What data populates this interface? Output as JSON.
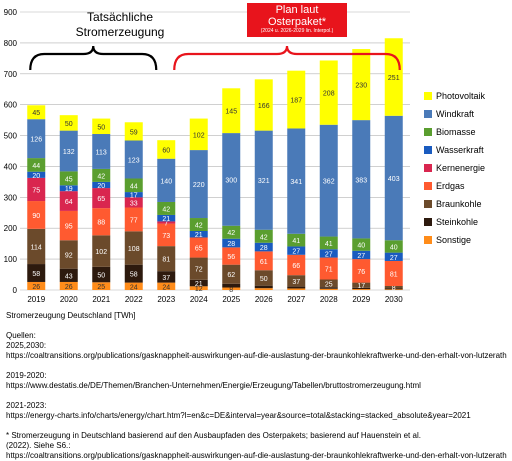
{
  "chart_data": {
    "type": "bar",
    "stacked": true,
    "categories": [
      "2019",
      "2020",
      "2021",
      "2022",
      "2023",
      "2024",
      "2025",
      "2026",
      "2027",
      "2028",
      "2029",
      "2030"
    ],
    "ylim": [
      0,
      900
    ],
    "yticks": [
      0,
      100,
      200,
      300,
      400,
      500,
      600,
      700,
      800,
      900
    ],
    "grid": true,
    "legend_position": "right",
    "series": [
      {
        "name": "Sonstige",
        "color": "#ff8c1a",
        "values": [
          26,
          26,
          25,
          24,
          24,
          12,
          8,
          6,
          5,
          4,
          3,
          2
        ]
      },
      {
        "name": "Steinkohle",
        "color": "#2d1a0e",
        "values": [
          58,
          43,
          50,
          58,
          37,
          21,
          12,
          8,
          6,
          5,
          4,
          3
        ]
      },
      {
        "name": "Braunkohle",
        "color": "#6b4a2b",
        "values": [
          114,
          92,
          102,
          108,
          81,
          72,
          62,
          50,
          37,
          25,
          17,
          8
        ]
      },
      {
        "name": "Erdgas",
        "color": "#ff5a30",
        "values": [
          90,
          95,
          88,
          77,
          73,
          65,
          56,
          61,
          66,
          71,
          76,
          81
        ]
      },
      {
        "name": "Kernenergie",
        "color": "#d9264f",
        "values": [
          75,
          64,
          65,
          33,
          7,
          0,
          0,
          0,
          0,
          0,
          0,
          0
        ]
      },
      {
        "name": "Wasserkraft",
        "color": "#1a5bbf",
        "values": [
          20,
          19,
          20,
          17,
          21,
          21,
          28,
          28,
          27,
          27,
          27,
          27
        ]
      },
      {
        "name": "Biomasse",
        "color": "#5a9e2f",
        "values": [
          44,
          45,
          42,
          44,
          42,
          42,
          42,
          42,
          41,
          41,
          40,
          40
        ]
      },
      {
        "name": "Windkraft",
        "color": "#4a7ab8",
        "values": [
          126,
          132,
          113,
          123,
          140,
          220,
          300,
          321,
          341,
          362,
          383,
          403
        ]
      },
      {
        "name": "Photovoltaik",
        "color": "#ffff00",
        "values": [
          45,
          50,
          50,
          59,
          60,
          102,
          145,
          166,
          187,
          208,
          230,
          251
        ]
      }
    ],
    "hidden_labels": {
      "Sonstige": [
        "2026",
        "2027",
        "2028",
        "2029",
        "2030"
      ],
      "Steinkohle": [
        "2025",
        "2026",
        "2027",
        "2028",
        "2029",
        "2030"
      ],
      "Kernenergie": [
        "2024",
        "2025",
        "2026",
        "2027",
        "2028",
        "2029",
        "2030"
      ]
    },
    "legend_order": [
      "Photovoltaik",
      "Windkraft",
      "Biomasse",
      "Wasserkraft",
      "Kernenergie",
      "Erdgas",
      "Braunkohle",
      "Steinkohle",
      "Sonstige"
    ],
    "ylabel": "",
    "xlabel": ""
  },
  "annotations": {
    "historical_title": "Tatsächliche Stromerzeugung",
    "plan_title": "Plan laut Osterpaket*",
    "plan_note": "(2024 u. 2026-2029 lin. Interpol.)"
  },
  "notes": [
    "Stromerzeugung Deutschland [TWh]",
    "",
    "Quellen:",
    "2025,2030:",
    "https://coaltransitions.org/publications/gasknappheit-auswirkungen-auf-die-auslastung-der-braunkohlekraftwerke-und-den-erhalt-von-lutzerath",
    "",
    "2019-2020:",
    "https://www.destatis.de/DE/Themen/Branchen-Unternehmen/Energie/Erzeugung/Tabellen/bruttostromerzeugung.html",
    "",
    "2021-2023:",
    "https://energy-charts.info/charts/energy/chart.htm?l=en&c=DE&interval=year&source=total&stacking=stacked_absolute&year=2021",
    "",
    "* Stromerzeugung in Deutschland basierend auf den Ausbaupfaden des Osterpakets; basierend auf Hauenstein et al.",
    "(2022). Siehe S6.:",
    "https://coaltransitions.org/publications/gasknappheit-auswirkungen-auf-die-auslastung-der-braunkohlekraftwerke-und-den-erhalt-von-lutzerath"
  ],
  "colors": {
    "bracket_historical": "#000000",
    "bracket_plan": "#e8141c",
    "plan_box": "#e8141c",
    "grid": "#b3b3b3"
  }
}
